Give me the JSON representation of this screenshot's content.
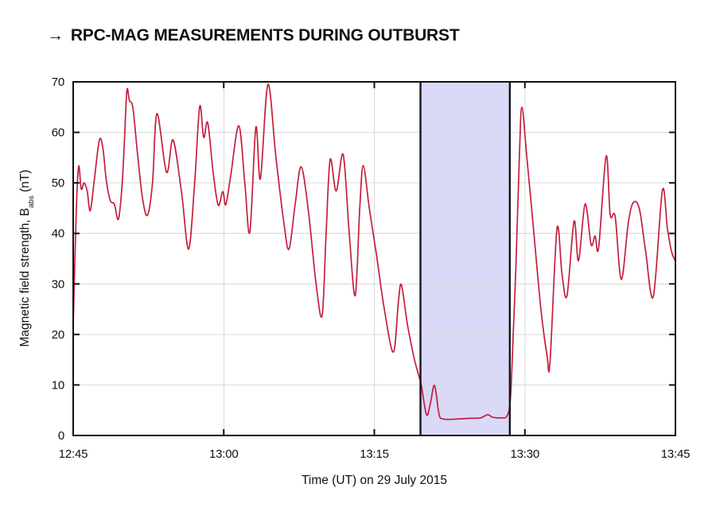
{
  "header": {
    "arrow": "→",
    "title": "RPC-MAG MEASUREMENTS DURING OUTBURST"
  },
  "axes": {
    "x_title": "Time (UT) on 29 July 2015",
    "y_title_prefix": "Magnetic field strength, B",
    "y_title_sub": "abs",
    "y_title_suffix": " (nT)"
  },
  "chart_data": {
    "type": "line",
    "title": "RPC-MAG MEASUREMENTS DURING OUTBURST",
    "xlabel": "Time (UT) on 29 July 2015",
    "ylabel": "Magnetic field strength, B_abs (nT)",
    "x_axis_unit": "minutes after 12:45 UT",
    "xlim_minutes": [
      0,
      60
    ],
    "ylim": [
      0,
      70
    ],
    "grid": true,
    "x_ticks": [
      {
        "min": 0,
        "label": "12:45"
      },
      {
        "min": 15,
        "label": "13:00"
      },
      {
        "min": 30,
        "label": "13:15"
      },
      {
        "min": 45,
        "label": "13:30"
      },
      {
        "min": 60,
        "label": "13:45"
      }
    ],
    "y_ticks": [
      0,
      10,
      20,
      30,
      40,
      50,
      60,
      70
    ],
    "colors": {
      "line": "#c41e3c",
      "band_fill": "#dad9f7",
      "band_border": "#16161e",
      "grid": "#d9d9d9",
      "frame": "#111111"
    },
    "shaded_region": {
      "start_min": 34.6,
      "end_min": 43.5,
      "start_time": "13:19.6",
      "end_time": "13:28.5"
    },
    "series": [
      {
        "name": "B_abs",
        "points_min_nT": [
          [
            0.0,
            21.5
          ],
          [
            0.3,
            44
          ],
          [
            0.55,
            53.3
          ],
          [
            0.8,
            48.8
          ],
          [
            1.1,
            50.0
          ],
          [
            1.4,
            48.3
          ],
          [
            1.7,
            44.5
          ],
          [
            2.1,
            50.5
          ],
          [
            2.6,
            58.4
          ],
          [
            2.95,
            57.0
          ],
          [
            3.3,
            50.5
          ],
          [
            3.7,
            46.5
          ],
          [
            4.1,
            45.8
          ],
          [
            4.5,
            42.8
          ],
          [
            4.85,
            49
          ],
          [
            5.1,
            58
          ],
          [
            5.35,
            68.3
          ],
          [
            5.6,
            66.3
          ],
          [
            5.95,
            64.8
          ],
          [
            6.4,
            56
          ],
          [
            6.9,
            47
          ],
          [
            7.4,
            43.6
          ],
          [
            7.9,
            50
          ],
          [
            8.35,
            63.7
          ],
          [
            9.3,
            52.1
          ],
          [
            9.95,
            58.5
          ],
          [
            10.8,
            48
          ],
          [
            11.5,
            36.9
          ],
          [
            12.1,
            50
          ],
          [
            12.6,
            65.1
          ],
          [
            13.0,
            59.0
          ],
          [
            13.4,
            61.9
          ],
          [
            13.95,
            52
          ],
          [
            14.45,
            45.6
          ],
          [
            14.9,
            48.3
          ],
          [
            15.2,
            45.7
          ],
          [
            15.7,
            51.5
          ],
          [
            16.5,
            61.3
          ],
          [
            17.1,
            50
          ],
          [
            17.6,
            40.3
          ],
          [
            18.2,
            61.0
          ],
          [
            18.65,
            50.8
          ],
          [
            19.4,
            69.5
          ],
          [
            20.2,
            55
          ],
          [
            21.0,
            42
          ],
          [
            21.5,
            36.9
          ],
          [
            22.1,
            45.5
          ],
          [
            22.7,
            53.2
          ],
          [
            23.4,
            45
          ],
          [
            24.2,
            30
          ],
          [
            24.8,
            23.8
          ],
          [
            25.2,
            40
          ],
          [
            25.6,
            54.6
          ],
          [
            26.2,
            48.4
          ],
          [
            26.9,
            55.6
          ],
          [
            27.5,
            40
          ],
          [
            28.1,
            27.7
          ],
          [
            28.55,
            45
          ],
          [
            28.9,
            53.4
          ],
          [
            29.5,
            45
          ],
          [
            30.2,
            36
          ],
          [
            31.0,
            25
          ],
          [
            31.9,
            16.5
          ],
          [
            32.4,
            26.5
          ],
          [
            32.7,
            29.8
          ],
          [
            33.3,
            22
          ],
          [
            34.0,
            15
          ],
          [
            34.65,
            10.2
          ],
          [
            35.2,
            4.1
          ],
          [
            35.6,
            6.5
          ],
          [
            36.0,
            9.9
          ],
          [
            36.45,
            4.2
          ],
          [
            36.8,
            3.3
          ],
          [
            37.6,
            3.2
          ],
          [
            38.6,
            3.3
          ],
          [
            39.6,
            3.4
          ],
          [
            40.6,
            3.5
          ],
          [
            41.3,
            4.1
          ],
          [
            41.8,
            3.6
          ],
          [
            42.6,
            3.5
          ],
          [
            43.2,
            3.8
          ],
          [
            43.55,
            7
          ],
          [
            43.8,
            18
          ],
          [
            44.1,
            33
          ],
          [
            44.45,
            55
          ],
          [
            44.7,
            65.0
          ],
          [
            45.2,
            55
          ],
          [
            45.9,
            40
          ],
          [
            46.6,
            25
          ],
          [
            47.2,
            16
          ],
          [
            47.5,
            14.4
          ],
          [
            48.2,
            40.9
          ],
          [
            48.7,
            32
          ],
          [
            49.2,
            27.7
          ],
          [
            49.9,
            42.4
          ],
          [
            50.35,
            34.6
          ],
          [
            51.0,
            45.8
          ],
          [
            51.6,
            37.8
          ],
          [
            52.0,
            39.5
          ],
          [
            52.35,
            37.2
          ],
          [
            53.1,
            55.3
          ],
          [
            53.5,
            43.7
          ],
          [
            54.0,
            43.3
          ],
          [
            54.6,
            30.9
          ],
          [
            55.3,
            42
          ],
          [
            55.8,
            46.1
          ],
          [
            56.4,
            44.9
          ],
          [
            57.0,
            37
          ],
          [
            57.8,
            27.5
          ],
          [
            58.7,
            48.5
          ],
          [
            59.2,
            41
          ],
          [
            59.6,
            36.5
          ],
          [
            60.0,
            34.5
          ]
        ]
      }
    ]
  }
}
